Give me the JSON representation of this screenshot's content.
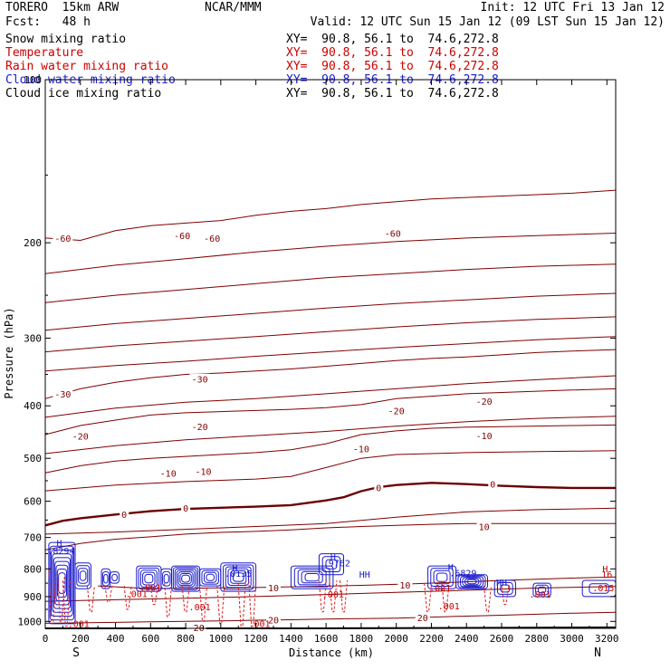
{
  "header": {
    "model": "TORERO  15km ARW",
    "forecast": "Fcst:   48 h",
    "center": "NCAR/MMM",
    "init": "Init: 12 UTC Fri 13 Jan 12",
    "valid": "Valid: 12 UTC Sun 15 Jan 12 (09 LST Sun 15 Jan 12)",
    "cross_section": "XY=  90.8, 56.1 to  74.6,272.8"
  },
  "fields": [
    {
      "name": "Snow mixing ratio",
      "color": "#000000"
    },
    {
      "name": "Temperature",
      "color": "#cc0000"
    },
    {
      "name": "Rain water mixing ratio",
      "color": "#cc0000"
    },
    {
      "name": "Cloud water mixing ratio",
      "color": "#1a1acc"
    },
    {
      "name": "Cloud ice mixing ratio",
      "color": "#000000"
    }
  ],
  "colors": {
    "temperature": "#800000",
    "freezing_line": "#6b0000",
    "rain_water": "#e02020",
    "cloud_water": "#1a1acc",
    "terrain": "#000000"
  },
  "chart_data": {
    "type": "line",
    "xlabel": "Distance (km)",
    "ylabel": "Pressure (hPa)",
    "x_ticks": [
      "0",
      "200",
      "400",
      "600",
      "800",
      "1000",
      "1200",
      "1400",
      "1600",
      "1800",
      "2000",
      "2200",
      "2400",
      "2600",
      "2800",
      "3000",
      "3200"
    ],
    "y_ticks": [
      "100",
      "200",
      "300",
      "400",
      "500",
      "600",
      "700",
      "800",
      "900",
      "1000"
    ],
    "xlim": [
      0,
      3250
    ],
    "ylim": [
      1030,
      100
    ],
    "y_scale": "log",
    "x_endpoints": {
      "left": "S",
      "right": "N"
    },
    "temperature_isotherms": [
      {
        "value": -60,
        "x": [
          0,
          200,
          400,
          600,
          800,
          1000,
          1200,
          1400,
          1600,
          1800,
          2000,
          2200,
          2400,
          2600,
          2800,
          3000,
          3250
        ],
        "y": [
          196,
          198,
          190,
          186,
          184,
          182,
          178,
          175,
          173,
          170,
          168,
          166,
          165,
          164,
          163,
          162,
          160
        ]
      },
      {
        "value": -55,
        "x": [
          0,
          400,
          800,
          1200,
          1600,
          2000,
          2400,
          2800,
          3250
        ],
        "y": [
          228,
          220,
          214,
          208,
          203,
          199,
          196,
          194,
          192
        ]
      },
      {
        "value": -50,
        "x": [
          0,
          400,
          800,
          1200,
          1600,
          2000,
          2400,
          2800,
          3250
        ],
        "y": [
          258,
          250,
          244,
          238,
          232,
          228,
          224,
          221,
          219
        ]
      },
      {
        "value": -45,
        "x": [
          0,
          400,
          800,
          1200,
          1600,
          2000,
          2400,
          2800,
          3250
        ],
        "y": [
          290,
          282,
          276,
          270,
          264,
          259,
          255,
          251,
          248
        ]
      },
      {
        "value": -40,
        "x": [
          0,
          400,
          800,
          1200,
          1600,
          2000,
          2400,
          2800,
          3250
        ],
        "y": [
          318,
          310,
          304,
          298,
          292,
          286,
          281,
          277,
          274
        ]
      },
      {
        "value": -35,
        "x": [
          0,
          400,
          800,
          1200,
          1600,
          2000,
          2400,
          2800,
          3250
        ],
        "y": [
          345,
          337,
          331,
          324,
          318,
          312,
          307,
          302,
          298
        ]
      },
      {
        "value": -30,
        "x": [
          0,
          200,
          400,
          600,
          800,
          1000,
          1200,
          1400,
          1600,
          1800,
          2000,
          2200,
          2400,
          2600,
          2800,
          3000,
          3250
        ],
        "y": [
          388,
          372,
          362,
          355,
          350,
          348,
          345,
          342,
          338,
          334,
          330,
          327,
          325,
          322,
          319,
          317,
          315
        ]
      },
      {
        "value": -25,
        "x": [
          0,
          400,
          800,
          1200,
          1600,
          2000,
          2400,
          2800,
          3250
        ],
        "y": [
          420,
          404,
          394,
          388,
          380,
          372,
          364,
          358,
          352
        ]
      },
      {
        "value": -20,
        "x": [
          0,
          200,
          400,
          600,
          800,
          1000,
          1200,
          1400,
          1600,
          1800,
          2000,
          2200,
          2400,
          2600,
          2800,
          3000,
          3250
        ],
        "y": [
          452,
          435,
          425,
          416,
          412,
          410,
          408,
          406,
          403,
          398,
          388,
          384,
          380,
          378,
          376,
          374,
          372
        ]
      },
      {
        "value": -15,
        "x": [
          0,
          400,
          800,
          1200,
          1600,
          2000,
          2400,
          2800,
          3250
        ],
        "y": [
          490,
          474,
          462,
          454,
          446,
          436,
          428,
          422,
          418
        ]
      },
      {
        "value": -10,
        "x": [
          0,
          200,
          400,
          600,
          800,
          1000,
          1200,
          1400,
          1600,
          1800,
          2000,
          2200,
          2400,
          2600,
          2800,
          3000,
          3250
        ],
        "y": [
          532,
          516,
          506,
          500,
          496,
          492,
          488,
          482,
          470,
          452,
          445,
          440,
          438,
          437,
          436,
          435,
          434
        ]
      },
      {
        "value": -5,
        "x": [
          0,
          400,
          800,
          1200,
          1400,
          1600,
          1800,
          2000,
          2400,
          2800,
          3250
        ],
        "y": [
          574,
          560,
          552,
          546,
          540,
          520,
          500,
          492,
          488,
          486,
          484
        ]
      },
      {
        "value": 0,
        "x": [
          0,
          100,
          200,
          400,
          600,
          800,
          1000,
          1200,
          1400,
          1600,
          1700,
          1800,
          1900,
          2000,
          2200,
          2400,
          2600,
          2800,
          3000,
          3250
        ],
        "y": [
          665,
          652,
          645,
          635,
          626,
          620,
          617,
          614,
          610,
          598,
          590,
          575,
          565,
          560,
          555,
          558,
          562,
          565,
          567,
          567
        ]
      },
      {
        "value": 5,
        "x": [
          0,
          400,
          800,
          1200,
          1600,
          2000,
          2400,
          2800,
          3250
        ],
        "y": [
          690,
          684,
          676,
          668,
          660,
          642,
          628,
          622,
          618
        ]
      },
      {
        "value": 10,
        "x": [
          0,
          200,
          400,
          600,
          800,
          1000,
          1200,
          1400,
          1600,
          1800,
          2000,
          2200,
          2400,
          2600,
          2800,
          3000,
          3250
        ],
        "y": [
          738,
          718,
          705,
          698,
          690,
          685,
          682,
          678,
          672,
          668,
          665,
          662,
          660,
          660,
          660,
          660,
          660
        ]
      },
      {
        "value": 10,
        "x": [
          300,
          600,
          900,
          1200,
          1500,
          1800,
          2100,
          2400,
          2700,
          3000,
          3250
        ],
        "y": [
          860,
          870,
          868,
          866,
          862,
          858,
          852,
          845,
          838,
          832,
          828
        ]
      },
      {
        "value": 15,
        "x": [
          0,
          400,
          800,
          1200,
          1600,
          2000,
          2400,
          2800,
          3250
        ],
        "y": [
          918,
          912,
          906,
          900,
          892,
          884,
          876,
          868,
          862
        ]
      },
      {
        "value": 20,
        "x": [
          0,
          200,
          400,
          600,
          800,
          1000,
          1200,
          1400,
          1600,
          1800,
          2000,
          2200,
          2400,
          2600,
          2800,
          3000,
          3250
        ],
        "y": [
          1008,
          1006,
          1004,
          1002,
          1000,
          998,
          995,
          993,
          990,
          988,
          986,
          982,
          978,
          974,
          970,
          966,
          962
        ]
      }
    ],
    "isotherm_labels": [
      {
        "text": "-60",
        "x": 100,
        "y": 196
      },
      {
        "text": "-60",
        "x": 780,
        "y": 194
      },
      {
        "text": "-60",
        "x": 950,
        "y": 196
      },
      {
        "text": "-60",
        "x": 1980,
        "y": 192
      },
      {
        "text": "-30",
        "x": 880,
        "y": 357
      },
      {
        "text": "-30",
        "x": 100,
        "y": 380
      },
      {
        "text": "-20",
        "x": 880,
        "y": 437
      },
      {
        "text": "-20",
        "x": 200,
        "y": 455
      },
      {
        "text": "-20",
        "x": 2000,
        "y": 408
      },
      {
        "text": "-20",
        "x": 2500,
        "y": 392
      },
      {
        "text": "-10",
        "x": 1800,
        "y": 480
      },
      {
        "text": "-10",
        "x": 2500,
        "y": 454
      },
      {
        "text": "-10",
        "x": 700,
        "y": 532
      },
      {
        "text": "-10",
        "x": 900,
        "y": 528
      },
      {
        "text": "0",
        "x": 1900,
        "y": 566
      },
      {
        "text": "0",
        "x": 2550,
        "y": 558
      },
      {
        "text": "0",
        "x": 800,
        "y": 617
      },
      {
        "text": "0",
        "x": 450,
        "y": 634
      },
      {
        "text": "10",
        "x": 2500,
        "y": 668
      },
      {
        "text": "10",
        "x": 1300,
        "y": 866
      },
      {
        "text": "10",
        "x": 2050,
        "y": 857
      },
      {
        "text": "20",
        "x": 1300,
        "y": 993
      },
      {
        "text": "20",
        "x": 2150,
        "y": 984
      },
      {
        "text": "-20",
        "x": 860,
        "y": 1027
      }
    ],
    "terrain_surface": {
      "x": [
        0,
        400,
        800,
        1200,
        1600,
        2000,
        2400,
        2800,
        3250
      ],
      "y": [
        1030,
        1030,
        1030,
        1030,
        1030,
        1029,
        1028,
        1027,
        1026
      ]
    },
    "cloud_water_cells": [
      {
        "x": [
          20,
          170
        ],
        "p": [
          715,
          1010
        ],
        "levels": 9
      },
      {
        "x": [
          170,
          260
        ],
        "p": [
          780,
          870
        ],
        "levels": 4
      },
      {
        "x": [
          320,
          370
        ],
        "p": [
          800,
          870
        ],
        "levels": 3
      },
      {
        "x": [
          370,
          420
        ],
        "p": [
          810,
          850
        ],
        "levels": 2
      },
      {
        "x": [
          520,
          660
        ],
        "p": [
          790,
          880
        ],
        "levels": 5
      },
      {
        "x": [
          660,
          720
        ],
        "p": [
          800,
          870
        ],
        "levels": 3
      },
      {
        "x": [
          720,
          880
        ],
        "p": [
          790,
          880
        ],
        "levels": 7
      },
      {
        "x": [
          880,
          1000
        ],
        "p": [
          800,
          860
        ],
        "levels": 4
      },
      {
        "x": [
          1000,
          1200
        ],
        "p": [
          780,
          880
        ],
        "levels": 6
      },
      {
        "x": [
          1400,
          1640
        ],
        "p": [
          790,
          870
        ],
        "levels": 5
      },
      {
        "x": [
          1560,
          1700
        ],
        "p": [
          750,
          820
        ],
        "levels": 3
      },
      {
        "x": [
          2180,
          2340
        ],
        "p": [
          790,
          870
        ],
        "levels": 4
      },
      {
        "x": [
          2340,
          2520
        ],
        "p": [
          820,
          870
        ],
        "levels": 6
      },
      {
        "x": [
          2560,
          2680
        ],
        "p": [
          840,
          900
        ],
        "levels": 3
      },
      {
        "x": [
          2780,
          2880
        ],
        "p": [
          850,
          900
        ],
        "levels": 3
      },
      {
        "x": [
          3060,
          3250
        ],
        "p": [
          840,
          900
        ],
        "levels": 2
      }
    ],
    "rain_water_drips": [
      {
        "x": 40,
        "p": [
          800,
          1010
        ]
      },
      {
        "x": 90,
        "p": [
          820,
          1000
        ]
      },
      {
        "x": 120,
        "p": [
          840,
          1020
        ]
      },
      {
        "x": 260,
        "p": [
          860,
          960
        ]
      },
      {
        "x": 360,
        "p": [
          860,
          920
        ]
      },
      {
        "x": 470,
        "p": [
          860,
          950
        ]
      },
      {
        "x": 620,
        "p": [
          860,
          930
        ]
      },
      {
        "x": 700,
        "p": [
          850,
          980
        ]
      },
      {
        "x": 800,
        "p": [
          860,
          960
        ]
      },
      {
        "x": 900,
        "p": [
          860,
          1000
        ]
      },
      {
        "x": 1000,
        "p": [
          860,
          1010
        ]
      },
      {
        "x": 1120,
        "p": [
          850,
          1020
        ]
      },
      {
        "x": 1180,
        "p": [
          840,
          1020
        ]
      },
      {
        "x": 1580,
        "p": [
          840,
          960
        ]
      },
      {
        "x": 1640,
        "p": [
          840,
          960
        ]
      },
      {
        "x": 1700,
        "p": [
          840,
          960
        ]
      },
      {
        "x": 2180,
        "p": [
          850,
          960
        ]
      },
      {
        "x": 2280,
        "p": [
          850,
          960
        ]
      },
      {
        "x": 2520,
        "p": [
          860,
          960
        ]
      },
      {
        "x": 2620,
        "p": [
          860,
          930
        ]
      }
    ],
    "annotations": [
      {
        "text": "H",
        "x": 80,
        "y": 727,
        "color": "#1a1acc"
      },
      {
        "text": ".8294",
        "x": 90,
        "y": 751,
        "color": "#1a1acc"
      },
      {
        "text": ".8135",
        "x": 1100,
        "y": 827,
        "color": "#1a1acc"
      },
      {
        "text": "H",
        "x": 1080,
        "y": 808,
        "color": "#1a1acc"
      },
      {
        "text": ".9762",
        "x": 1660,
        "y": 792,
        "color": "#1a1acc"
      },
      {
        "text": "H",
        "x": 1640,
        "y": 770,
        "color": "#1a1acc"
      },
      {
        "text": ".6829",
        "x": 2380,
        "y": 826,
        "color": "#1a1acc"
      },
      {
        "text": "H",
        "x": 2310,
        "y": 805,
        "color": "#1a1acc"
      },
      {
        "text": "HH",
        "x": 1820,
        "y": 830,
        "color": "#1a1acc"
      },
      {
        "text": "HH",
        "x": 2600,
        "y": 860,
        "color": "#1a1acc"
      },
      {
        "text": "H",
        "x": 3190,
        "y": 812,
        "color": "#cc0000"
      },
      {
        "text": "16",
        "x": 3200,
        "y": 830,
        "color": "#cc0000"
      },
      {
        "text": ".001",
        "x": 600,
        "y": 878,
        "color": "#cc0000"
      },
      {
        "text": ".001",
        "x": 2250,
        "y": 880,
        "color": "#cc0000"
      },
      {
        "text": ".001",
        "x": 2820,
        "y": 903,
        "color": "#cc0000"
      },
      {
        "text": ".001",
        "x": 520,
        "y": 902,
        "color": "#cc0000"
      },
      {
        "text": ".001",
        "x": 880,
        "y": 953,
        "color": "#cc0000"
      },
      {
        "text": ".001",
        "x": 1220,
        "y": 1025,
        "color": "#cc0000"
      },
      {
        "text": ".001",
        "x": 190,
        "y": 1025,
        "color": "#cc0000"
      },
      {
        "text": ".001",
        "x": 1640,
        "y": 903,
        "color": "#cc0000"
      },
      {
        "text": ".001",
        "x": 2300,
        "y": 950,
        "color": "#cc0000"
      },
      {
        "text": ".015",
        "x": 3180,
        "y": 880,
        "color": "#cc0000"
      }
    ]
  }
}
